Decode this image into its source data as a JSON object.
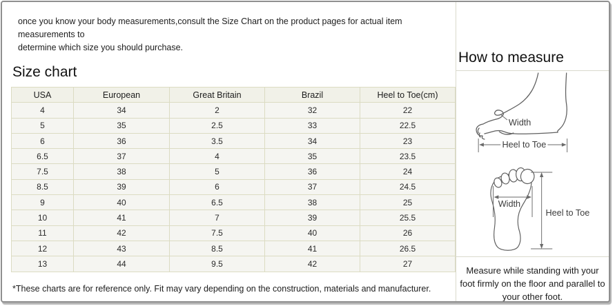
{
  "intro": {
    "line1": "once you know your body measurements,consult the Size Chart on the product pages for actual item measurements to",
    "line2": "determine which size you should purchase."
  },
  "size_chart": {
    "title": "Size chart",
    "table": {
      "headers": [
        "USA",
        "European",
        "Great Britain",
        "Brazil",
        "Heel to Toe(cm)"
      ],
      "rows": [
        [
          "4",
          "34",
          "2",
          "32",
          "22"
        ],
        [
          "5",
          "35",
          "2.5",
          "33",
          "22.5"
        ],
        [
          "6",
          "36",
          "3.5",
          "34",
          "23"
        ],
        [
          "6.5",
          "37",
          "4",
          "35",
          "23.5"
        ],
        [
          "7.5",
          "38",
          "5",
          "36",
          "24"
        ],
        [
          "8.5",
          "39",
          "6",
          "37",
          "24.5"
        ],
        [
          "9",
          "40",
          "6.5",
          "38",
          "25"
        ],
        [
          "10",
          "41",
          "7",
          "39",
          "25.5"
        ],
        [
          "11",
          "42",
          "7.5",
          "40",
          "26"
        ],
        [
          "12",
          "43",
          "8.5",
          "41",
          "26.5"
        ],
        [
          "13",
          "44",
          "9.5",
          "42",
          "27"
        ]
      ]
    },
    "footnote": "*These charts are for reference only. Fit may vary depending on the construction, materials and manufacturer."
  },
  "how_to_measure": {
    "title": "How to measure",
    "labels": {
      "side_width": "Width",
      "side_heel_to_toe": "Heel to Toe",
      "sole_width": "Width",
      "sole_heel_to_toe": "Heel to Toe"
    },
    "note": "Measure while standing with your foot firmly on the floor and parallel to your other foot."
  },
  "colors": {
    "table_border": "#dbdbc2",
    "header_bg": "#f1f1e8",
    "cell_bg": "#f5f5f1",
    "divider": "#d9d9cc",
    "outer_border": "#8f8f8f",
    "diagram_stroke": "#5f5f5f",
    "text": "#1c1c1c"
  }
}
